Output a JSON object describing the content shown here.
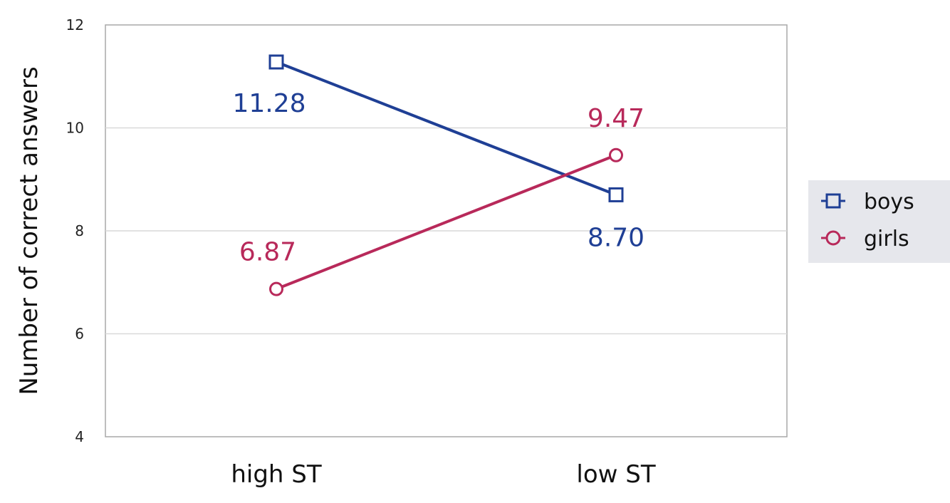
{
  "chart_data": {
    "type": "line",
    "categories": [
      "high ST",
      "low ST"
    ],
    "ylabel": "Number of correct answers",
    "ylim": [
      4,
      12
    ],
    "yticks": [
      "4",
      "6",
      "8",
      "10",
      "12"
    ],
    "grid": true,
    "legend_position": "right",
    "series": [
      {
        "name": "boys",
        "marker": "square",
        "color": "#1f3f95",
        "values": [
          11.28,
          8.7
        ],
        "labels": [
          "11.28",
          "8.70"
        ]
      },
      {
        "name": "girls",
        "marker": "circle",
        "color": "#b8295a",
        "values": [
          6.87,
          9.47
        ],
        "labels": [
          "6.87",
          "9.47"
        ]
      }
    ]
  }
}
